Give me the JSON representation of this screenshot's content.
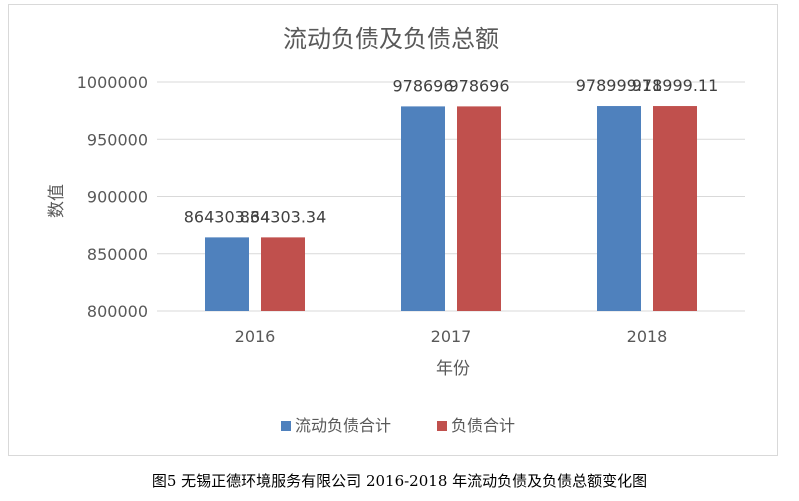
{
  "chart_data": {
    "type": "bar",
    "title": "流动负债及负债总额",
    "xlabel": "年份",
    "ylabel": "数值",
    "categories": [
      "2016",
      "2017",
      "2018"
    ],
    "series": [
      {
        "name": "流动负债合计",
        "values": [
          864303.34,
          978696,
          978999.11
        ],
        "labels": [
          "864303.34",
          "978696",
          "978999.11"
        ],
        "color": "#4f81bd"
      },
      {
        "name": "负债合计",
        "values": [
          864303.34,
          978696,
          978999.11
        ],
        "labels": [
          "864303.34",
          "978696",
          "978999.11"
        ],
        "color": "#c0504d"
      }
    ],
    "ylim": [
      800000,
      1000000
    ],
    "yticks": [
      800000,
      850000,
      900000,
      950000,
      1000000
    ],
    "ytick_labels": [
      "800000",
      "850000",
      "900000",
      "950000",
      "1000000"
    ],
    "grid": true,
    "legend_position": "bottom"
  },
  "caption": "图5 无锡正德环境服务有限公司 2016-2018 年流动负债及负债总额变化图"
}
